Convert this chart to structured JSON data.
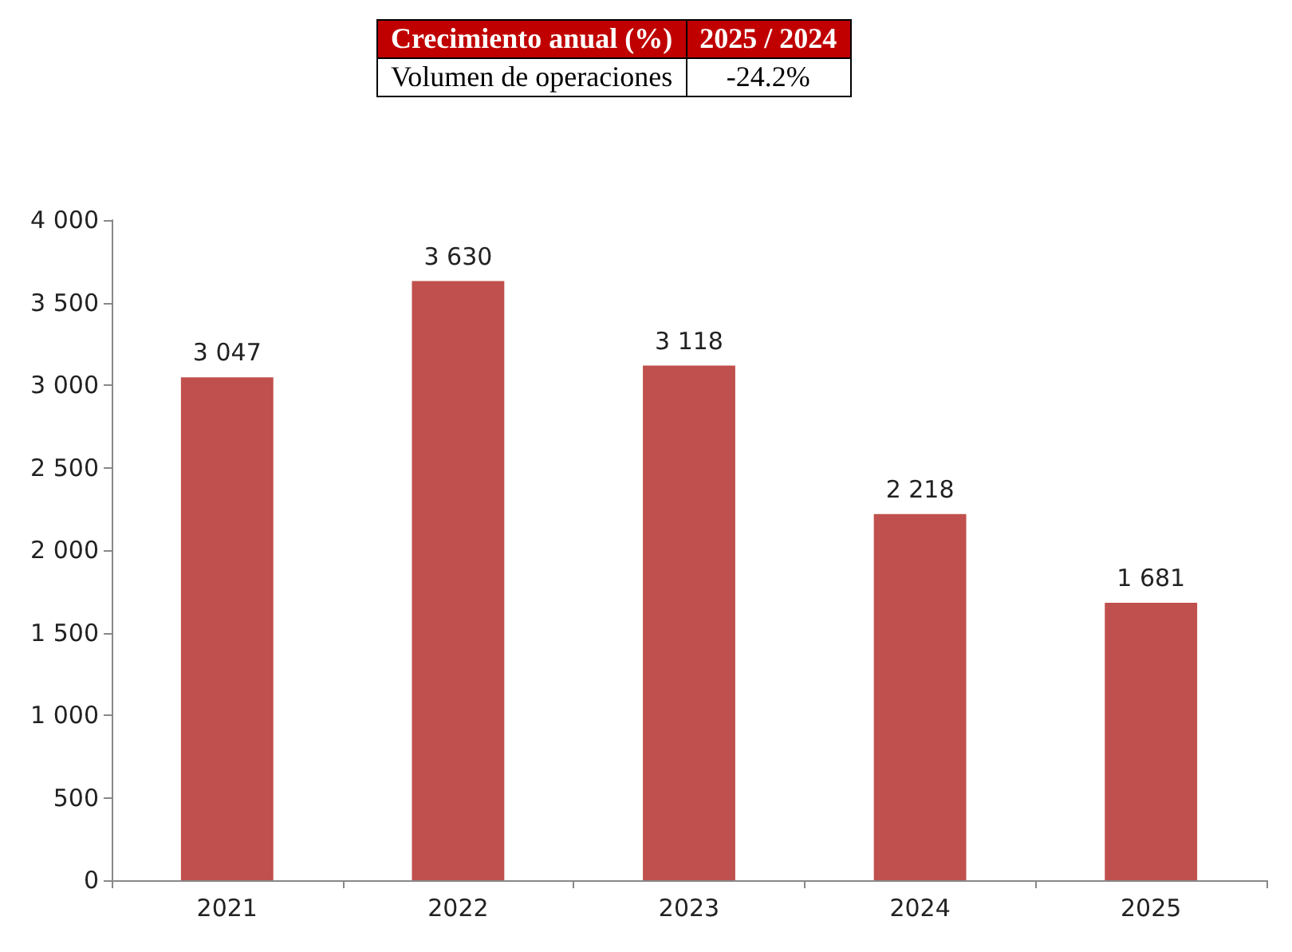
{
  "chart_data": {
    "type": "bar",
    "categories": [
      "2021",
      "2022",
      "2023",
      "2024",
      "2025"
    ],
    "values": [
      3047,
      3630,
      3118,
      2218,
      1681
    ],
    "value_labels": [
      "3 047",
      "3 630",
      "3 118",
      "2 218",
      "1 681"
    ],
    "color": "#c0504d",
    "ylim": [
      0,
      4000
    ],
    "yticks": [
      0,
      {
        "value": 500,
        "label": "500"
      },
      {
        "value": 1000,
        "label": "1 000"
      },
      {
        "value": 1500,
        "label": "1 500"
      },
      {
        "value": 2000,
        "label": "2 000"
      },
      {
        "value": 2500,
        "label": "2 500"
      },
      {
        "value": 3000,
        "label": "3 000"
      },
      {
        "value": 3500,
        "label": "3 500"
      },
      {
        "value": 4000,
        "label": "4 000"
      }
    ],
    "grid": false,
    "annotations": [
      "Crecimiento anual (%)",
      "2025 / 2024",
      "Volumen de operaciones",
      "-24.2%"
    ]
  }
}
